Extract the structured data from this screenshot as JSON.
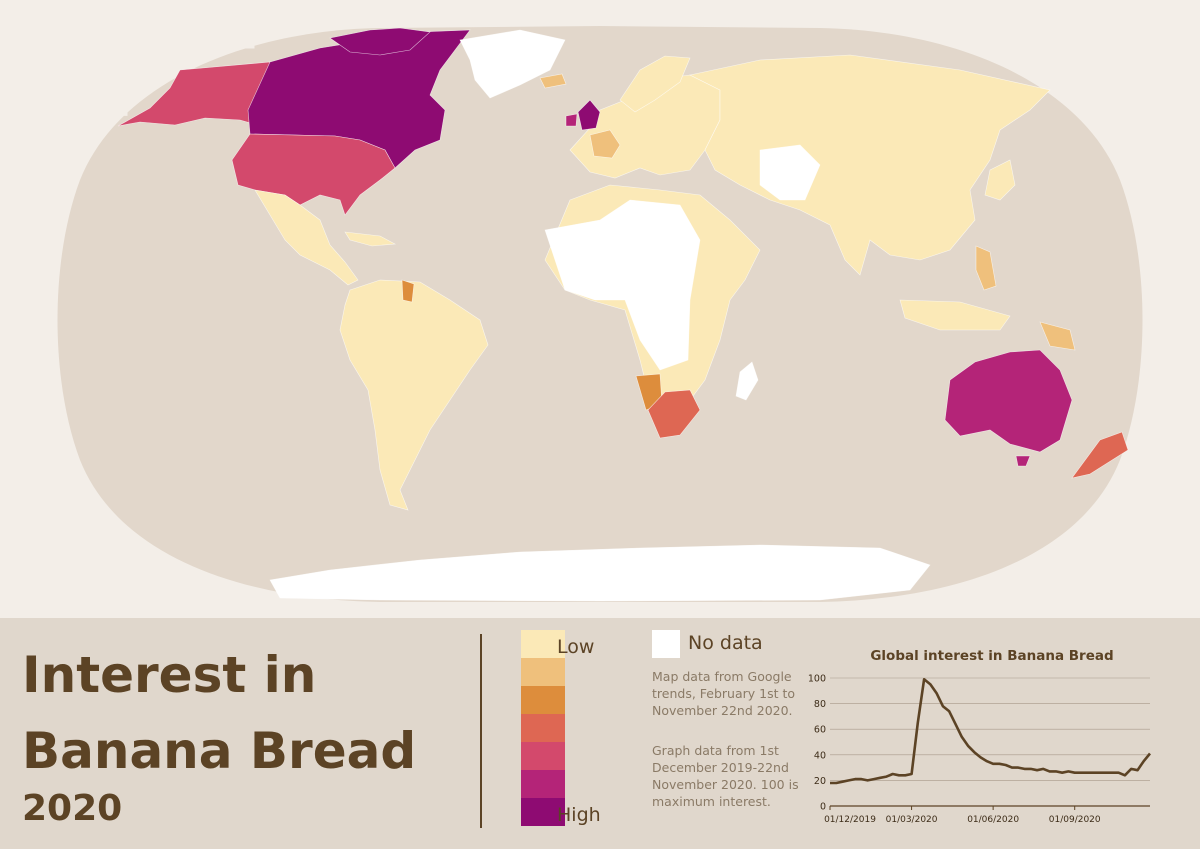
{
  "title": {
    "line1": "Interest in",
    "line2": "Banana Bread",
    "year": "2020"
  },
  "legend": {
    "low_label": "Low",
    "high_label": "High",
    "no_data_label": "No data",
    "scale_colors": [
      "#fbe9b7",
      "#efc07c",
      "#dd8d3c",
      "#de6753",
      "#d3496c",
      "#b42478",
      "#8e0b72"
    ],
    "no_data_color": "#ffffff"
  },
  "notes": {
    "map_source": "Map data from Google trends, February 1st to November 22nd 2020.",
    "graph_source": "Graph data from 1st December 2019-22nd November 2020. 100 is maximum interest."
  },
  "map": {
    "ocean_color": "#e2d7cb",
    "highlights": [
      {
        "region": "Canada",
        "level": 7
      },
      {
        "region": "United Kingdom",
        "level": 7
      },
      {
        "region": "Australia",
        "level": 6
      },
      {
        "region": "Alaska",
        "level": 5
      },
      {
        "region": "United States",
        "level": 5
      },
      {
        "region": "New Zealand",
        "level": 4
      },
      {
        "region": "South Africa",
        "level": 4
      },
      {
        "region": "Namibia",
        "level": 3
      },
      {
        "region": "Guyana",
        "level": 3
      },
      {
        "region": "Papua New Guinea",
        "level": 2
      }
    ]
  },
  "chart_data": {
    "type": "line",
    "title": "Global interest in Banana Bread",
    "xlabel": "",
    "ylabel": "",
    "ylim": [
      0,
      100
    ],
    "yticks": [
      0,
      20,
      40,
      60,
      80,
      100
    ],
    "xtick_labels": [
      "01/12/2019",
      "01/03/2020",
      "01/06/2020",
      "01/09/2020"
    ],
    "xtick_weeks": [
      0,
      13,
      26,
      39
    ],
    "grid": "horizontal",
    "line_color": "#5c4325",
    "series": [
      {
        "x_week": [
          0,
          1,
          2,
          3,
          4,
          5,
          6,
          7,
          8,
          9,
          10,
          11,
          12,
          13,
          14,
          15,
          16,
          17,
          18,
          19,
          20,
          21,
          22,
          23,
          24,
          25,
          26,
          27,
          28,
          29,
          30,
          31,
          32,
          33,
          34,
          35,
          36,
          37,
          38,
          39,
          40,
          41,
          42,
          43,
          44,
          45,
          46,
          47,
          48,
          49,
          50,
          51
        ],
        "values": [
          18,
          18,
          19,
          20,
          21,
          21,
          20,
          21,
          22,
          23,
          25,
          24,
          24,
          25,
          65,
          99,
          95,
          88,
          78,
          74,
          64,
          54,
          47,
          42,
          38,
          35,
          33,
          33,
          32,
          30,
          30,
          29,
          29,
          28,
          29,
          27,
          27,
          26,
          27,
          26,
          26,
          26,
          26,
          26,
          26,
          26,
          26,
          24,
          29,
          28,
          35,
          41
        ]
      }
    ]
  }
}
